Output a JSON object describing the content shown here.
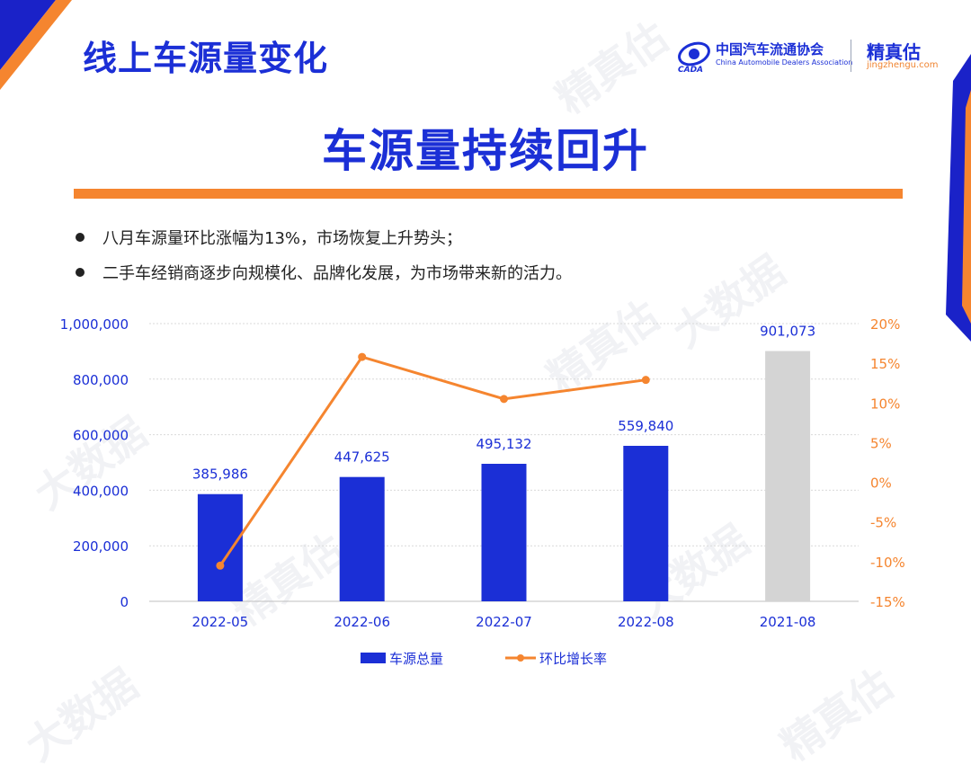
{
  "page": {
    "title": "线上车源量变化",
    "headline": "车源量持续回升",
    "bullets": [
      "八月车源量环比涨幅为13%，市场恢复上升势头；",
      "二手车经销商逐步向规模化、品牌化发展，为市场带来新的活力。"
    ]
  },
  "logos": {
    "cada_name": "中国汽车流通协会",
    "cada_en": "China Automobile Dealers Association",
    "cada_mark": "CADA",
    "jzg_name": "精真估",
    "jzg_url": "jingzhengu.com"
  },
  "watermark": {
    "text": "精真估",
    "text2": "大数据",
    "url": "jingzhengu.com"
  },
  "colors": {
    "brand_blue": "#1b2fd6",
    "accent_orange": "#f5852f",
    "bar_gray": "#d4d4d4",
    "corner_blue": "#1a22c8"
  },
  "chart_data": {
    "type": "bar",
    "categories": [
      "2022-05",
      "2022-06",
      "2022-07",
      "2022-08",
      "2021-08"
    ],
    "series": [
      {
        "name": "车源总量",
        "type": "bar",
        "values": [
          385986,
          447625,
          495132,
          559840,
          901073
        ],
        "value_labels": [
          "385,986",
          "447,625",
          "495,132",
          "559,840",
          "901,073"
        ],
        "colors": [
          "#1b2fd6",
          "#1b2fd6",
          "#1b2fd6",
          "#1b2fd6",
          "#d4d4d4"
        ],
        "axis": "left"
      },
      {
        "name": "环比增长率",
        "type": "line",
        "values": [
          -10.5,
          15.8,
          10.5,
          12.9,
          null
        ],
        "color": "#f5852f",
        "axis": "right"
      }
    ],
    "y_left": {
      "min": 0,
      "max": 1000000,
      "ticks": [
        "0",
        "200,000",
        "400,000",
        "600,000",
        "800,000",
        "1,000,000"
      ]
    },
    "y_right": {
      "min": -15,
      "max": 20,
      "ticks": [
        "-15%",
        "-10%",
        "-5%",
        "0%",
        "5%",
        "10%",
        "15%",
        "20%"
      ]
    },
    "grid": true,
    "legend_position": "bottom"
  }
}
